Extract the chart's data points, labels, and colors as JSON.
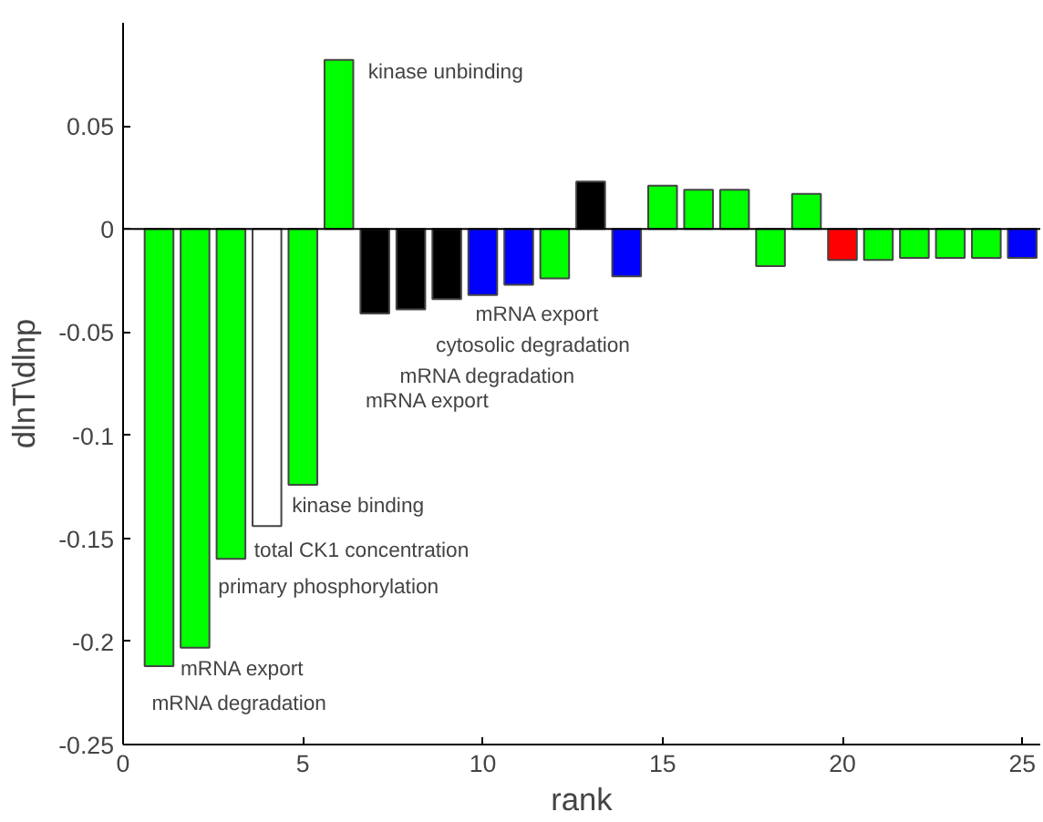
{
  "chart_data": {
    "type": "bar",
    "xlabel": "rank",
    "ylabel": "dlnT\\dlnp",
    "x": [
      1,
      2,
      3,
      4,
      5,
      6,
      7,
      8,
      9,
      10,
      11,
      12,
      13,
      14,
      15,
      16,
      17,
      18,
      19,
      20,
      21,
      22,
      23,
      24,
      25
    ],
    "values": [
      -0.212,
      -0.203,
      -0.16,
      -0.144,
      -0.124,
      0.082,
      -0.041,
      -0.039,
      -0.034,
      -0.032,
      -0.027,
      -0.024,
      0.023,
      -0.023,
      0.021,
      0.019,
      0.019,
      -0.018,
      0.017,
      -0.015,
      -0.015,
      -0.014,
      -0.014,
      -0.014,
      -0.014
    ],
    "colors": [
      "#00ff00",
      "#00ff00",
      "#00ff00",
      "#ffffff",
      "#00ff00",
      "#00ff00",
      "#000000",
      "#000000",
      "#000000",
      "#0000ff",
      "#0000ff",
      "#00ff00",
      "#000000",
      "#0000ff",
      "#00ff00",
      "#00ff00",
      "#00ff00",
      "#00ff00",
      "#00ff00",
      "#ff0000",
      "#00ff00",
      "#00ff00",
      "#00ff00",
      "#00ff00",
      "#0000ff"
    ],
    "xlim": [
      0,
      25.5
    ],
    "xticks": [
      0,
      5,
      10,
      15,
      20,
      25
    ],
    "ylim": [
      -0.25,
      0.1
    ],
    "yticks": [
      -0.25,
      -0.2,
      -0.15,
      -0.1,
      -0.05,
      0,
      0.05
    ],
    "ref_lines": [
      {
        "axis": "y",
        "value": 0,
        "color": "#000000"
      }
    ],
    "grid": false,
    "annotations": [
      {
        "text": "kinase unbinding",
        "x": 6,
        "y": 0.082
      },
      {
        "text": "mRNA export",
        "x": 10,
        "y": -0.032
      },
      {
        "text": "cytosolic degradation",
        "x": 9,
        "y": -0.034
      },
      {
        "text": "mRNA degradation",
        "x": 8,
        "y": -0.039
      },
      "mRNA export",
      {
        "text": "kinase binding",
        "x": 5,
        "y": -0.124
      },
      {
        "text": "total CK1 concentration",
        "x": 4,
        "y": -0.144
      },
      {
        "text": "primary phosphorylation",
        "x": 3,
        "y": -0.16
      },
      {
        "text": "mRNA export",
        "x": 2,
        "y": -0.203
      },
      {
        "text": "mRNA degradation",
        "x": 1,
        "y": -0.212
      }
    ]
  }
}
